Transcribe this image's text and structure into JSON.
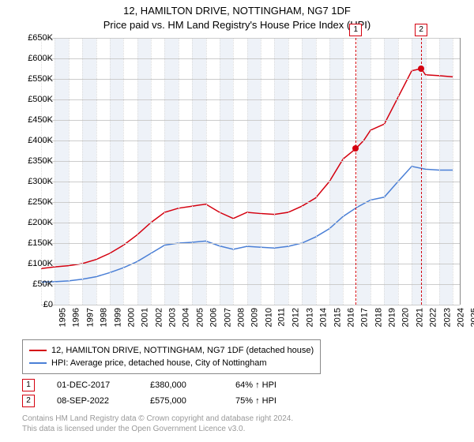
{
  "title": "12, HAMILTON DRIVE, NOTTINGHAM, NG7 1DF",
  "subtitle": "Price paid vs. HM Land Registry's House Price Index (HPI)",
  "chart": {
    "type": "line",
    "background_color": "#ffffff",
    "grid_color": "#cccccc",
    "vgrid_color": "#dddddd",
    "band_color": "#eef2f8",
    "ylim": [
      0,
      650
    ],
    "ytick_step": 50,
    "y_prefix": "£",
    "y_suffix": "K",
    "xlim": [
      1995,
      2025.5
    ],
    "x_years": [
      1995,
      1996,
      1997,
      1998,
      1999,
      2000,
      2001,
      2002,
      2003,
      2004,
      2005,
      2006,
      2007,
      2008,
      2009,
      2010,
      2011,
      2012,
      2013,
      2014,
      2015,
      2016,
      2017,
      2018,
      2019,
      2020,
      2021,
      2022,
      2023,
      2024,
      2025
    ],
    "series": [
      {
        "name": "property",
        "label": "12, HAMILTON DRIVE, NOTTINGHAM, NG7 1DF (detached house)",
        "color": "#d4000f",
        "line_width": 1.5,
        "points": [
          [
            1995,
            88
          ],
          [
            1996,
            92
          ],
          [
            1997,
            95
          ],
          [
            1998,
            100
          ],
          [
            1999,
            110
          ],
          [
            2000,
            125
          ],
          [
            2001,
            145
          ],
          [
            2002,
            170
          ],
          [
            2003,
            200
          ],
          [
            2004,
            225
          ],
          [
            2005,
            235
          ],
          [
            2006,
            240
          ],
          [
            2007,
            245
          ],
          [
            2008,
            225
          ],
          [
            2009,
            210
          ],
          [
            2010,
            225
          ],
          [
            2011,
            222
          ],
          [
            2012,
            220
          ],
          [
            2013,
            225
          ],
          [
            2014,
            240
          ],
          [
            2015,
            260
          ],
          [
            2016,
            300
          ],
          [
            2017,
            355
          ],
          [
            2017.92,
            380
          ],
          [
            2018.5,
            400
          ],
          [
            2019,
            425
          ],
          [
            2020,
            440
          ],
          [
            2021,
            505
          ],
          [
            2022,
            570
          ],
          [
            2022.69,
            575
          ],
          [
            2023,
            560
          ],
          [
            2024,
            558
          ],
          [
            2025,
            555
          ]
        ]
      },
      {
        "name": "hpi",
        "label": "HPI: Average price, detached house, City of Nottingham",
        "color": "#4a7fd6",
        "line_width": 1.5,
        "points": [
          [
            1995,
            55
          ],
          [
            1996,
            56
          ],
          [
            1997,
            58
          ],
          [
            1998,
            62
          ],
          [
            1999,
            68
          ],
          [
            2000,
            78
          ],
          [
            2001,
            90
          ],
          [
            2002,
            105
          ],
          [
            2003,
            125
          ],
          [
            2004,
            145
          ],
          [
            2005,
            150
          ],
          [
            2006,
            152
          ],
          [
            2007,
            155
          ],
          [
            2008,
            143
          ],
          [
            2009,
            135
          ],
          [
            2010,
            142
          ],
          [
            2011,
            140
          ],
          [
            2012,
            138
          ],
          [
            2013,
            142
          ],
          [
            2014,
            150
          ],
          [
            2015,
            165
          ],
          [
            2016,
            185
          ],
          [
            2017,
            215
          ],
          [
            2018,
            237
          ],
          [
            2019,
            255
          ],
          [
            2020,
            262
          ],
          [
            2021,
            300
          ],
          [
            2022,
            337
          ],
          [
            2023,
            330
          ],
          [
            2024,
            328
          ],
          [
            2025,
            328
          ]
        ]
      }
    ],
    "markers": [
      {
        "id": "1",
        "x": 2017.92,
        "y": 380,
        "color": "#d4000f"
      },
      {
        "id": "2",
        "x": 2022.69,
        "y": 575,
        "color": "#d4000f"
      }
    ],
    "label_fontsize": 11
  },
  "legend": {
    "border_color": "#888888"
  },
  "transactions": [
    {
      "id": "1",
      "date": "01-DEC-2017",
      "price": "£380,000",
      "delta": "64% ↑ HPI",
      "color": "#d4000f"
    },
    {
      "id": "2",
      "date": "08-SEP-2022",
      "price": "£575,000",
      "delta": "75% ↑ HPI",
      "color": "#d4000f"
    }
  ],
  "footer": {
    "line1": "Contains HM Land Registry data © Crown copyright and database right 2024.",
    "line2": "This data is licensed under the Open Government Licence v3.0."
  }
}
